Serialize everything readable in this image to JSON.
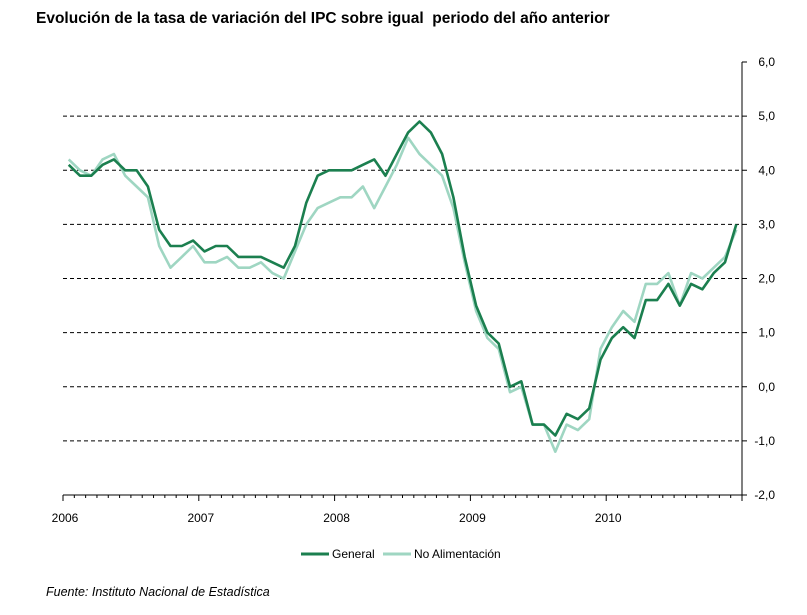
{
  "chart_data": {
    "type": "line",
    "title": "Evolución de la tasa de variación del IPC sobre igual  periodo del año anterior",
    "source": "Fuente: Instituto Nacional de Estadística",
    "xlabel": "",
    "ylabel": "",
    "x_tick_labels": [
      "2006",
      "2007",
      "2008",
      "2009",
      "2010"
    ],
    "y_ticks": [
      6.0,
      5.0,
      4.0,
      3.0,
      2.0,
      1.0,
      0.0,
      -1.0,
      -2.0
    ],
    "y_tick_labels": [
      "6,0",
      "5,0",
      "4,0",
      "3,0",
      "2,0",
      "1,0",
      "0,0",
      "-1,0",
      "-2,0"
    ],
    "ylim": [
      -2.0,
      6.0
    ],
    "y_axis_side": "right",
    "grid": "dashed horizontal",
    "legend_position": "bottom",
    "months": [
      "2006-01",
      "2006-02",
      "2006-03",
      "2006-04",
      "2006-05",
      "2006-06",
      "2006-07",
      "2006-08",
      "2006-09",
      "2006-10",
      "2006-11",
      "2006-12",
      "2007-01",
      "2007-02",
      "2007-03",
      "2007-04",
      "2007-05",
      "2007-06",
      "2007-07",
      "2007-08",
      "2007-09",
      "2007-10",
      "2007-11",
      "2007-12",
      "2008-01",
      "2008-02",
      "2008-03",
      "2008-04",
      "2008-05",
      "2008-06",
      "2008-07",
      "2008-08",
      "2008-09",
      "2008-10",
      "2008-11",
      "2008-12",
      "2009-01",
      "2009-02",
      "2009-03",
      "2009-04",
      "2009-05",
      "2009-06",
      "2009-07",
      "2009-08",
      "2009-09",
      "2009-10",
      "2009-11",
      "2009-12",
      "2010-01",
      "2010-02",
      "2010-03",
      "2010-04",
      "2010-05",
      "2010-06",
      "2010-07",
      "2010-08",
      "2010-09",
      "2010-10",
      "2010-11",
      "2010-12"
    ],
    "series": [
      {
        "name": "General",
        "color": "#1b7f4f",
        "values": [
          4.1,
          3.9,
          3.9,
          4.1,
          4.2,
          4.0,
          4.0,
          3.7,
          2.9,
          2.6,
          2.6,
          2.7,
          2.5,
          2.6,
          2.6,
          2.4,
          2.4,
          2.4,
          2.3,
          2.2,
          2.6,
          3.4,
          3.9,
          4.0,
          4.0,
          4.0,
          4.1,
          4.2,
          3.9,
          4.3,
          4.7,
          4.9,
          4.7,
          4.3,
          3.5,
          2.4,
          1.5,
          1.0,
          0.8,
          0.0,
          0.1,
          -0.7,
          -0.7,
          -0.9,
          -0.5,
          -0.6,
          -0.4,
          0.5,
          0.9,
          1.1,
          0.9,
          1.6,
          1.6,
          1.9,
          1.5,
          1.9,
          1.8,
          2.1,
          2.3,
          3.0
        ]
      },
      {
        "name": "No Alimentación",
        "color": "#9fd6c2",
        "values": [
          4.2,
          4.0,
          3.9,
          4.2,
          4.3,
          3.9,
          3.7,
          3.5,
          2.6,
          2.2,
          2.4,
          2.6,
          2.3,
          2.3,
          2.4,
          2.2,
          2.2,
          2.3,
          2.1,
          2.0,
          2.5,
          3.0,
          3.3,
          3.4,
          3.5,
          3.5,
          3.7,
          3.3,
          3.7,
          4.1,
          4.6,
          4.3,
          4.1,
          3.9,
          3.3,
          2.3,
          1.4,
          0.9,
          0.7,
          -0.1,
          0.0,
          -0.7,
          -0.7,
          -1.2,
          -0.7,
          -0.8,
          -0.6,
          0.7,
          1.1,
          1.4,
          1.2,
          1.9,
          1.9,
          2.1,
          1.5,
          2.1,
          2.0,
          2.2,
          2.4,
          2.9
        ]
      }
    ]
  }
}
